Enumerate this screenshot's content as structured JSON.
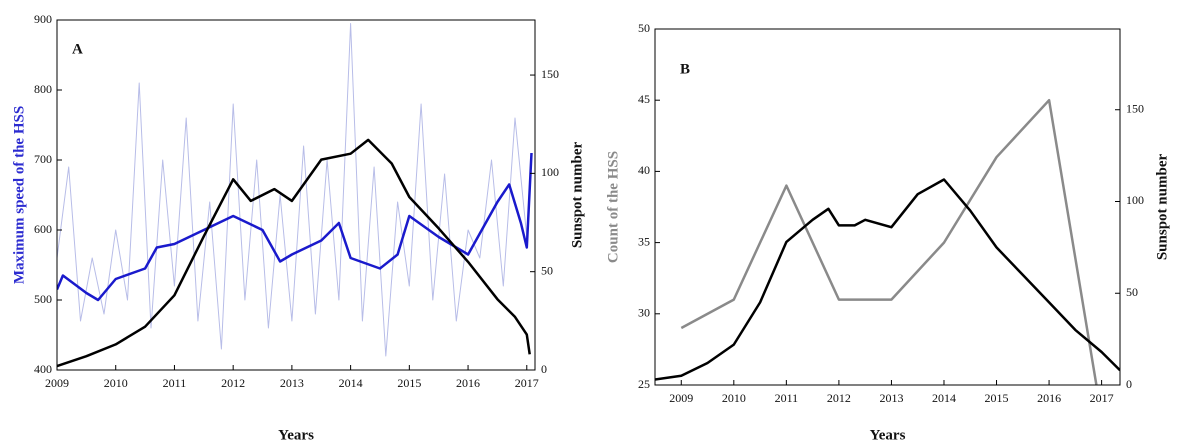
{
  "chart_data": [
    {
      "type": "line",
      "title": "A",
      "xlabel": "Years",
      "ylabel": "Maximum speed of the HSS",
      "y2label": "Sunspot number",
      "ylabel_color": "#2b2bd0",
      "xlim": [
        2009,
        2017.14
      ],
      "xticks": [
        2009,
        2010,
        2011,
        2012,
        2013,
        2014,
        2015,
        2016,
        2017
      ],
      "ylim": [
        400,
        900
      ],
      "yticks": [
        400,
        500,
        600,
        700,
        800,
        900
      ],
      "y2lim": [
        0,
        178
      ],
      "y2ticks": [
        0,
        50,
        100,
        150
      ],
      "series": [
        {
          "color": "#b8bde8",
          "width": 1,
          "x": [
            2009,
            2009.2,
            2009.4,
            2009.6,
            2009.8,
            2010,
            2010.2,
            2010.4,
            2010.6,
            2010.8,
            2011,
            2011.2,
            2011.4,
            2011.6,
            2011.8,
            2012,
            2012.2,
            2012.4,
            2012.6,
            2012.8,
            2013,
            2013.2,
            2013.4,
            2013.6,
            2013.8,
            2014,
            2014.2,
            2014.4,
            2014.6,
            2014.8,
            2015,
            2015.2,
            2015.4,
            2015.6,
            2015.8,
            2016,
            2016.2,
            2016.4,
            2016.6,
            2016.8,
            2017
          ],
          "values": [
            560,
            690,
            470,
            560,
            480,
            600,
            500,
            810,
            460,
            700,
            520,
            760,
            470,
            640,
            430,
            780,
            500,
            700,
            460,
            650,
            470,
            720,
            480,
            700,
            500,
            895,
            470,
            690,
            420,
            640,
            520,
            780,
            500,
            680,
            470,
            600,
            560,
            700,
            520,
            760,
            590
          ]
        },
        {
          "color": "#1a1acc",
          "width": 2.5,
          "x": [
            2009,
            2009.1,
            2009.5,
            2009.7,
            2010,
            2010.5,
            2010.7,
            2011,
            2011.5,
            2012,
            2012.5,
            2012.8,
            2013,
            2013.5,
            2013.8,
            2014,
            2014.5,
            2014.8,
            2015,
            2015.5,
            2016,
            2016.5,
            2016.7,
            2016.9,
            2017,
            2017.08
          ],
          "values": [
            515,
            535,
            510,
            500,
            530,
            545,
            575,
            580,
            600,
            620,
            600,
            555,
            565,
            585,
            610,
            560,
            545,
            565,
            620,
            590,
            565,
            640,
            665,
            610,
            575,
            710
          ]
        },
        {
          "color": "#000000",
          "width": 2.5,
          "axis": "y2",
          "x": [
            2009,
            2009.5,
            2010,
            2010.5,
            2011,
            2011.5,
            2012,
            2012.3,
            2012.7,
            2013,
            2013.5,
            2014,
            2014.3,
            2014.7,
            2015,
            2015.5,
            2016,
            2016.5,
            2016.8,
            2017,
            2017.05
          ],
          "values": [
            2,
            7,
            13,
            22,
            38,
            68,
            97,
            86,
            92,
            86,
            107,
            110,
            117,
            105,
            88,
            72,
            55,
            36,
            27,
            18,
            8
          ]
        }
      ]
    },
    {
      "type": "line",
      "title": "B",
      "xlabel": "Years",
      "ylabel": "Count of the HSS",
      "y2label": "Sunspot number",
      "ylabel_color": "#8a8a8a",
      "xlim": [
        2008.5,
        2017.35
      ],
      "xticks": [
        2009,
        2010,
        2011,
        2012,
        2013,
        2014,
        2015,
        2016,
        2017
      ],
      "ylim": [
        25,
        50
      ],
      "yticks": [
        25,
        30,
        35,
        40,
        45,
        50
      ],
      "y2lim": [
        0,
        194
      ],
      "y2ticks": [
        0,
        50,
        100,
        150
      ],
      "series": [
        {
          "color": "#8a8a8a",
          "width": 2.5,
          "x": [
            2009,
            2010,
            2011,
            2012,
            2013,
            2014,
            2015,
            2016,
            2016.9
          ],
          "values": [
            29,
            31,
            39,
            31,
            31,
            35,
            41,
            45,
            25
          ]
        },
        {
          "color": "#000000",
          "width": 2.5,
          "axis": "y2",
          "x": [
            2008.5,
            2009,
            2009.5,
            2010,
            2010.5,
            2011,
            2011.5,
            2011.8,
            2012,
            2012.3,
            2012.5,
            2013,
            2013.5,
            2014,
            2014.5,
            2015,
            2015.5,
            2016,
            2016.5,
            2017,
            2017.35
          ],
          "values": [
            3,
            5,
            12,
            22,
            45,
            78,
            90,
            96,
            87,
            87,
            90,
            86,
            104,
            112,
            95,
            75,
            60,
            45,
            30,
            18,
            8
          ]
        }
      ]
    }
  ]
}
